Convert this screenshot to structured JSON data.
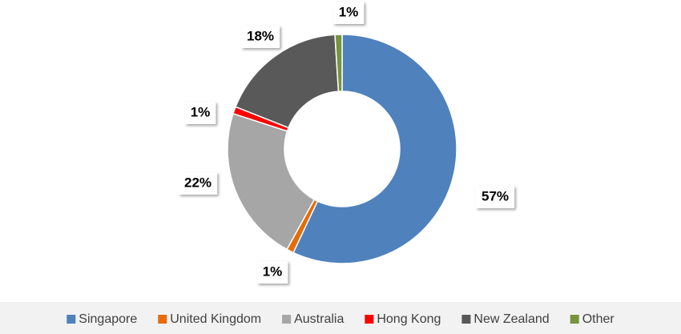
{
  "chart_data": {
    "type": "donut",
    "categories": [
      "Singapore",
      "United Kingdom",
      "Australia",
      "Hong Kong",
      "New Zealand",
      "Other"
    ],
    "values": [
      57,
      1,
      22,
      1,
      18,
      1
    ],
    "value_labels": [
      "57%",
      "1%",
      "22%",
      "1%",
      "18%",
      "1%"
    ],
    "colors": [
      "#4f81bd",
      "#e46c0a",
      "#a6a6a6",
      "#ff0000",
      "#595959",
      "#77933c"
    ],
    "legend": "bottom"
  }
}
